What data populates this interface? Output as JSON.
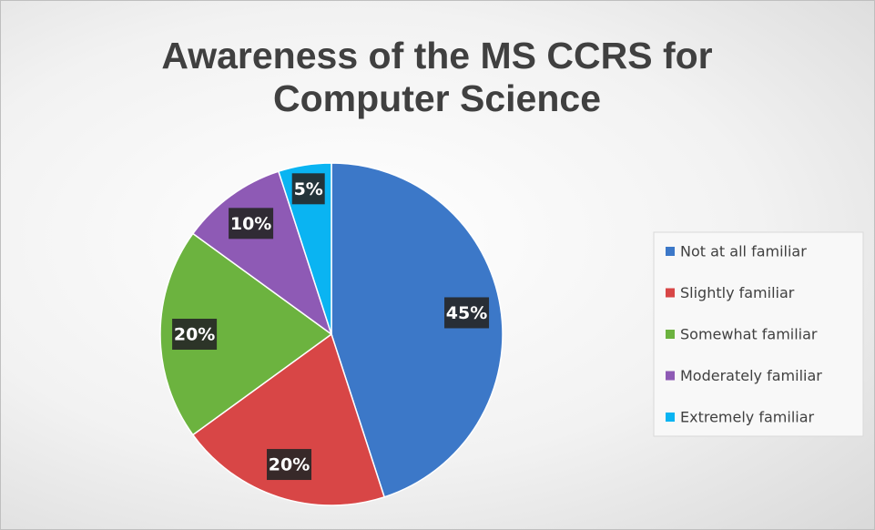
{
  "chart_data": {
    "type": "pie",
    "title": "Awareness of the MS CCRS for Computer Science",
    "categories": [
      "Not at all familiar",
      "Slightly familiar",
      "Somewhat familiar",
      "Moderately familiar",
      "Extremely familiar"
    ],
    "values": [
      45,
      20,
      20,
      10,
      5
    ],
    "value_labels": [
      "45%",
      "20%",
      "20%",
      "10%",
      "5%"
    ],
    "colors": [
      "#3c78c8",
      "#d84646",
      "#6cb33f",
      "#8e5ab5",
      "#0ab4f2"
    ],
    "legend": "right"
  }
}
